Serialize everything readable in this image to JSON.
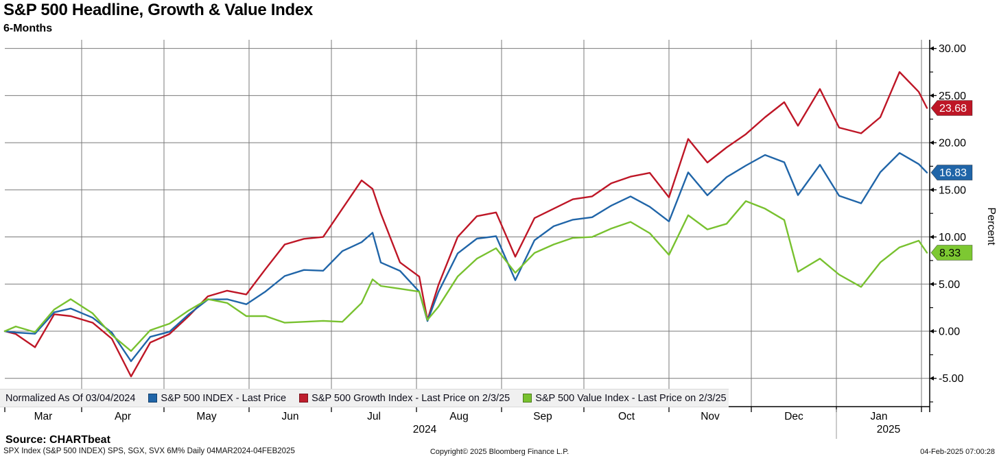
{
  "header": {
    "title": "S&P 500 Headline, Growth & Value Index",
    "subtitle": "6-Months"
  },
  "legend": {
    "normalized_label": "Normalized As Of 03/04/2024",
    "items": [
      {
        "id": "sp500",
        "label": "S&P 500 INDEX - Last Price",
        "color": "#2065a8"
      },
      {
        "id": "growth",
        "label": "S&P 500 Growth Index - Last Price on 2/3/25",
        "color": "#be1e2d"
      },
      {
        "id": "value",
        "label": "S&P 500 Value Index - Last Price on 2/3/25",
        "color": "#78c12f"
      }
    ]
  },
  "price_tags": [
    {
      "series": "growth",
      "value": "23.68",
      "bg": "#be1626",
      "fg": "#ffffff"
    },
    {
      "series": "sp500",
      "value": "16.83",
      "bg": "#2065a8",
      "fg": "#ffffff"
    },
    {
      "series": "value",
      "value": "8.33",
      "bg": "#7dc832",
      "fg": "#000000"
    }
  ],
  "axes": {
    "y_title": "Percent",
    "y_tick_labels": [
      "30.00",
      "25.00",
      "20.00",
      "15.00",
      "10.00",
      "5.00",
      "0.00",
      "-5.00"
    ],
    "x_month_labels": [
      "Mar",
      "Apr",
      "May",
      "Jun",
      "Jul",
      "Aug",
      "Sep",
      "Oct",
      "Nov",
      "Dec",
      "Jan"
    ],
    "x_year_labels": [
      "2024",
      "2025"
    ]
  },
  "footer": {
    "source": "Source: CHARTbeat",
    "meta": "SPX Index (S&P 500 INDEX) SPS, SGX, SVX 6M%  Daily 04MAR2024-04FEB2025",
    "copyright": "Copyright© 2025 Bloomberg Finance L.P.",
    "timestamp": "04-Feb-2025 07:00:28"
  },
  "chart_data": {
    "type": "line",
    "title": "S&P 500 Headline, Growth & Value Index",
    "subtitle": "6-Months",
    "ylabel": "Percent",
    "normalized_as_of": "03/04/2024",
    "date_range": "04MAR2024-04FEB2025",
    "ylim": [
      -8.0,
      30.9
    ],
    "y_ticks": [
      30,
      25,
      20,
      15,
      10,
      5,
      0,
      -5
    ],
    "y_minor_step": 2.5,
    "grid": true,
    "legend_position": "bottom",
    "x": [
      "Mar 4",
      "Mar 8",
      "Mar 15",
      "Mar 22",
      "Mar 28",
      "Apr 5",
      "Apr 12",
      "Apr 19",
      "Apr 26",
      "May 3",
      "May 10",
      "May 17",
      "May 24",
      "May 31",
      "Jun 7",
      "Jun 14",
      "Jun 21",
      "Jun 28",
      "Jul 5",
      "Jul 12",
      "Jul 16",
      "Jul 19",
      "Jul 26",
      "Aug 2",
      "Aug 5",
      "Aug 9",
      "Aug 16",
      "Aug 23",
      "Aug 30",
      "Sep 6",
      "Sep 13",
      "Sep 20",
      "Sep 27",
      "Oct 4",
      "Oct 11",
      "Oct 18",
      "Oct 25",
      "Nov 1",
      "Nov 8",
      "Nov 15",
      "Nov 22",
      "Nov 29",
      "Dec 6",
      "Dec 13",
      "Dec 18",
      "Dec 26",
      "Jan 2",
      "Jan 10",
      "Jan 17",
      "Jan 24",
      "Jan 31",
      "Feb 3"
    ],
    "day_offsets": [
      0,
      4,
      11,
      18,
      24,
      32,
      39,
      46,
      53,
      60,
      67,
      74,
      81,
      88,
      95,
      102,
      109,
      116,
      123,
      130,
      134,
      137,
      144,
      151,
      154,
      158,
      165,
      172,
      179,
      186,
      193,
      200,
      207,
      214,
      221,
      228,
      235,
      242,
      249,
      256,
      263,
      270,
      277,
      284,
      289,
      297,
      304,
      312,
      319,
      326,
      333,
      336
    ],
    "month_boundaries_days": [
      0,
      28,
      58,
      89,
      119,
      150,
      181,
      211,
      242,
      272,
      303,
      334
    ],
    "total_days": 337,
    "series": [
      {
        "id": "growth",
        "name": "S&P 500 Growth Index",
        "color": "#be1626",
        "last_price": 23.68,
        "values": [
          0,
          -0.3,
          -1.7,
          1.8,
          1.6,
          0.9,
          -0.8,
          -4.8,
          -1.2,
          -0.3,
          1.6,
          3.7,
          4.3,
          3.9,
          6.6,
          9.2,
          9.8,
          10.0,
          13.0,
          16.0,
          15.1,
          12.5,
          7.3,
          5.8,
          1.2,
          4.9,
          10.0,
          12.2,
          12.6,
          7.9,
          12.0,
          13.0,
          14.0,
          14.3,
          15.7,
          16.4,
          16.8,
          14.2,
          20.4,
          17.9,
          19.5,
          20.9,
          22.7,
          24.3,
          21.8,
          25.7,
          21.6,
          21.0,
          22.7,
          27.5,
          25.4,
          23.68
        ]
      },
      {
        "id": "sp500",
        "name": "S&P 500 INDEX",
        "color": "#2065a8",
        "last_price": 16.83,
        "values": [
          0,
          -0.14,
          -0.27,
          2.01,
          2.41,
          1.43,
          -0.15,
          -3.19,
          -0.6,
          -0.06,
          1.79,
          3.36,
          3.39,
          2.86,
          4.21,
          5.86,
          6.5,
          6.42,
          8.5,
          9.44,
          10.45,
          7.29,
          6.4,
          4.2,
          1.08,
          4.16,
          8.25,
          9.82,
          10.08,
          5.41,
          9.65,
          11.14,
          11.83,
          12.09,
          13.33,
          14.3,
          13.2,
          11.65,
          16.85,
          14.42,
          16.34,
          17.57,
          18.7,
          17.93,
          14.44,
          17.66,
          14.37,
          13.57,
          16.87,
          18.91,
          17.73,
          16.83
        ]
      },
      {
        "id": "value",
        "name": "S&P 500 Value Index",
        "color": "#78c12f",
        "last_price": 8.33,
        "values": [
          0,
          0.5,
          -0.1,
          2.3,
          3.4,
          1.9,
          -0.4,
          -2.1,
          0.1,
          0.8,
          2.2,
          3.4,
          3.0,
          1.6,
          1.6,
          0.9,
          1.0,
          1.1,
          1.0,
          3.0,
          5.5,
          4.8,
          4.5,
          4.2,
          1.2,
          2.6,
          5.8,
          7.7,
          8.8,
          6.2,
          8.3,
          9.2,
          9.9,
          10.0,
          10.9,
          11.6,
          10.4,
          8.1,
          12.3,
          10.8,
          11.4,
          13.8,
          13.0,
          11.8,
          6.3,
          7.7,
          6.0,
          4.7,
          7.3,
          8.9,
          9.6,
          8.33
        ]
      }
    ],
    "years": [
      {
        "label": "2024",
        "day": 153
      },
      {
        "label": "2025",
        "day": 322
      }
    ],
    "year_divider_day": 303,
    "colors": {
      "grid": "#787878",
      "axis": "#000000"
    }
  }
}
